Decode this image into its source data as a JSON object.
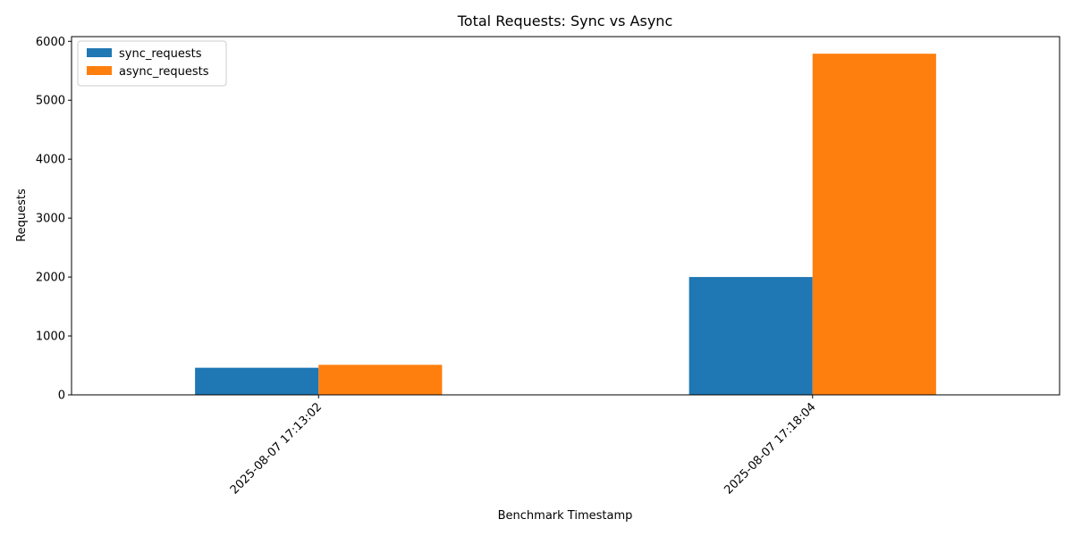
{
  "chart_data": {
    "type": "bar",
    "title": "Total Requests: Sync vs Async",
    "xlabel": "Benchmark Timestamp",
    "ylabel": "Requests",
    "categories": [
      "2025-08-07 17:13:02",
      "2025-08-07 17:18:04"
    ],
    "series": [
      {
        "name": "sync_requests",
        "color": "#1f77b4",
        "values": [
          460,
          2000
        ]
      },
      {
        "name": "async_requests",
        "color": "#ff7f0e",
        "values": [
          510,
          5790
        ]
      }
    ],
    "ylim": [
      0,
      6080
    ],
    "yticks": [
      0,
      1000,
      2000,
      3000,
      4000,
      5000,
      6000
    ],
    "grid": false,
    "legend": "top-left"
  }
}
